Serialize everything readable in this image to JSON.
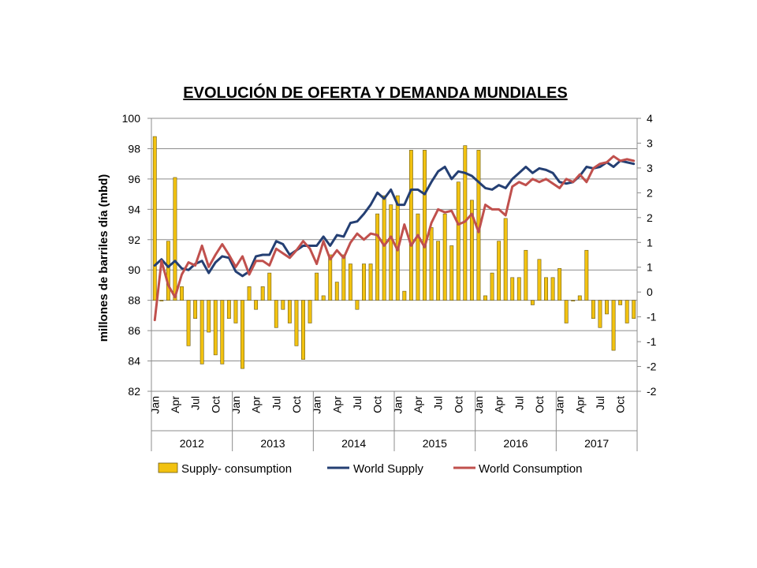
{
  "chart_data": {
    "type": "bar+line",
    "title": "EVOLUCIÓN DE OFERTA Y DEMANDA MUNDIALES",
    "ylabel": "millones de barriles día (mbd)",
    "ylim": [
      82,
      100
    ],
    "y_ticks": [
      "82",
      "84",
      "86",
      "88",
      "90",
      "92",
      "94",
      "96",
      "98",
      "100"
    ],
    "y2lim": [
      -2,
      4
    ],
    "y2_ticks": [
      "-2",
      "-2",
      "-1",
      "-1",
      "0",
      "1",
      "1",
      "2",
      "2",
      "3",
      "3",
      "4"
    ],
    "month_tick_labels": [
      "Jan",
      "Apr",
      "Jul",
      "Oct"
    ],
    "years": [
      "2012",
      "2013",
      "2014",
      "2015",
      "2016",
      "2017"
    ],
    "grid": true,
    "legend_position": "bottom",
    "colors": {
      "bar": "#f2c210",
      "bar_edge": "#6b5a12",
      "supply": "#243f73",
      "consumption": "#c0504d"
    },
    "series": [
      {
        "name": "Supply- consumption",
        "kind": "bar",
        "axis": "right",
        "values": [
          3.6,
          0.0,
          1.3,
          2.7,
          0.3,
          -1.0,
          -0.4,
          -1.4,
          -0.7,
          -1.2,
          -1.4,
          -0.4,
          -0.5,
          -1.5,
          0.3,
          -0.2,
          0.3,
          0.6,
          -0.6,
          -0.2,
          -0.5,
          -1.0,
          -1.3,
          -0.5,
          0.6,
          0.1,
          1.0,
          0.4,
          1.0,
          0.8,
          -0.2,
          0.8,
          0.8,
          1.9,
          2.3,
          2.1,
          2.3,
          0.2,
          3.3,
          1.9,
          3.3,
          1.6,
          1.3,
          1.9,
          1.2,
          2.6,
          3.4,
          2.2,
          3.3,
          0.1,
          0.6,
          1.3,
          1.8,
          0.5,
          0.5,
          1.1,
          -0.1,
          0.9,
          0.5,
          0.5,
          0.7,
          -0.5,
          0.0,
          0.1,
          1.1,
          -0.4,
          -0.6,
          -0.3,
          -1.1,
          -0.1,
          -0.5,
          -0.4
        ],
        "x_start": "2012-01"
      },
      {
        "name": "World Supply",
        "kind": "line",
        "axis": "left",
        "values": [
          90.3,
          90.7,
          90.2,
          90.6,
          90.1,
          90.0,
          90.4,
          90.6,
          89.8,
          90.5,
          90.9,
          90.8,
          89.9,
          89.6,
          89.9,
          90.9,
          91.0,
          91.0,
          91.9,
          91.7,
          91.0,
          91.3,
          91.6,
          91.6,
          91.6,
          92.2,
          91.6,
          92.3,
          92.2,
          93.1,
          93.2,
          93.7,
          94.3,
          95.1,
          94.7,
          95.3,
          94.3,
          94.3,
          95.3,
          95.3,
          95.0,
          95.8,
          96.5,
          96.8,
          96.0,
          96.5,
          96.4,
          96.2,
          95.8,
          95.4,
          95.3,
          95.6,
          95.4,
          96.0,
          96.4,
          96.8,
          96.4,
          96.7,
          96.6,
          96.4,
          95.8,
          95.7,
          95.8,
          96.2,
          96.8,
          96.7,
          96.8,
          97.1,
          96.8,
          97.2,
          97.1,
          97.0
        ],
        "x_start": "2012-01"
      },
      {
        "name": "World Consumption",
        "kind": "line",
        "axis": "left",
        "values": [
          86.7,
          90.6,
          89.0,
          88.2,
          89.7,
          90.5,
          90.3,
          91.6,
          90.2,
          91.0,
          91.7,
          91.0,
          90.2,
          90.9,
          89.7,
          90.6,
          90.6,
          90.3,
          91.4,
          91.1,
          90.8,
          91.3,
          91.9,
          91.4,
          90.4,
          91.9,
          90.7,
          91.3,
          90.8,
          91.8,
          92.4,
          92.0,
          92.4,
          92.3,
          91.6,
          92.2,
          91.3,
          93.0,
          91.6,
          92.3,
          91.5,
          93.1,
          94.0,
          93.8,
          93.9,
          93.0,
          93.2,
          93.7,
          92.5,
          94.3,
          94.0,
          94.0,
          93.6,
          95.5,
          95.8,
          95.6,
          96.0,
          95.8,
          96.0,
          95.7,
          95.4,
          96.0,
          95.8,
          96.3,
          95.8,
          96.7,
          97.0,
          97.1,
          97.5,
          97.2,
          97.3,
          97.2
        ],
        "x_start": "2012-01"
      }
    ]
  }
}
